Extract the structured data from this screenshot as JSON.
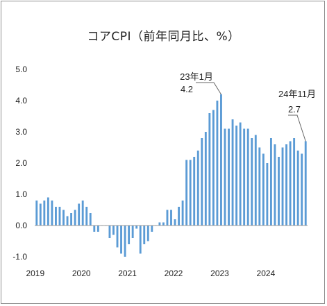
{
  "chart_data": {
    "type": "bar",
    "title": "コアCPI（前年同月比、%）",
    "xlabel": "",
    "ylabel": "",
    "ylim": [
      -1.0,
      5.0
    ],
    "yticks": [
      -1.0,
      0.0,
      1.0,
      2.0,
      3.0,
      4.0,
      5.0
    ],
    "ytick_labels": [
      "-1.0",
      "0.0",
      "1.0",
      "2.0",
      "3.0",
      "4.0",
      "5.0"
    ],
    "xtick_labels": [
      "2019",
      "2020",
      "2021",
      "2022",
      "2023",
      "2024"
    ],
    "grid": false,
    "bar_color": "#5b9bd5",
    "start": "2019-01",
    "end": "2024-11",
    "series": [
      {
        "values": [
          0.8,
          0.7,
          0.8,
          0.9,
          0.8,
          0.6,
          0.6,
          0.5,
          0.3,
          0.4,
          0.5,
          0.7,
          0.8,
          0.6,
          0.4,
          -0.2,
          -0.2,
          0.0,
          0.0,
          -0.4,
          -0.3,
          -0.7,
          -0.9,
          -1.0,
          -0.6,
          -0.4,
          -0.1,
          -0.9,
          -0.6,
          -0.5,
          -0.2,
          0.0,
          0.1,
          0.1,
          0.5,
          0.5,
          0.2,
          0.6,
          0.8,
          2.1,
          2.1,
          2.2,
          2.4,
          2.8,
          3.0,
          3.6,
          3.7,
          4.0,
          4.2,
          3.1,
          3.1,
          3.4,
          3.2,
          3.3,
          3.1,
          3.1,
          2.8,
          2.9,
          2.5,
          2.3,
          2.0,
          2.8,
          2.6,
          2.2,
          2.5,
          2.6,
          2.7,
          2.8,
          2.4,
          2.3,
          2.7
        ]
      }
    ],
    "annotations": [
      {
        "month": "2023-01",
        "label": "23年1月",
        "value_label": "4.2"
      },
      {
        "month": "2024-11",
        "label": "24年11月",
        "value_label": "2.7"
      }
    ]
  }
}
